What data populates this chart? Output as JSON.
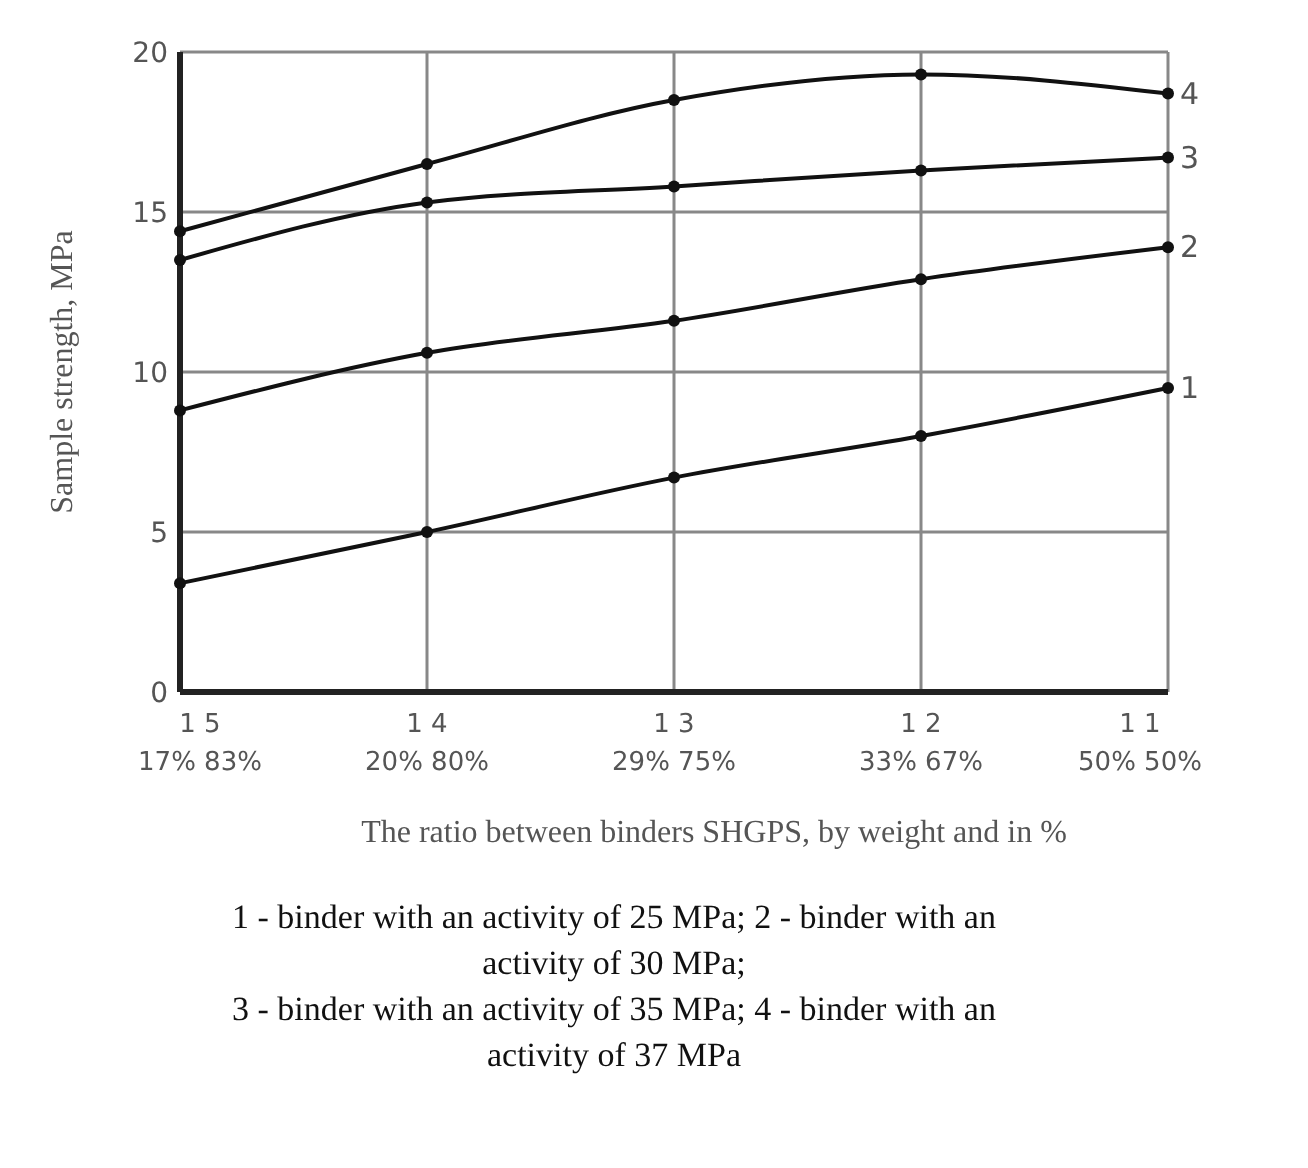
{
  "chart_data": {
    "type": "line",
    "xlabel": "The ratio between binders SHGPS, by weight and in %",
    "ylabel": "Sample strength, MPa",
    "categories": [
      "1 5\n17% 83%",
      "1 4\n20% 80%",
      "1 3\n29% 75%",
      "1 2\n33% 67%",
      "1 1\n50% 50%"
    ],
    "ylim": [
      0,
      20
    ],
    "yticks": [
      0,
      5,
      10,
      15,
      20
    ],
    "grid": true,
    "marker": "circle",
    "line_style": "solid",
    "series": [
      {
        "name": "1",
        "color": "#111111",
        "values": [
          3.4,
          5.0,
          6.7,
          8.0,
          9.5
        ]
      },
      {
        "name": "2",
        "color": "#111111",
        "values": [
          8.8,
          10.6,
          11.6,
          12.9,
          13.9
        ]
      },
      {
        "name": "3",
        "color": "#111111",
        "values": [
          13.5,
          15.3,
          15.8,
          16.3,
          16.7
        ]
      },
      {
        "name": "4",
        "color": "#111111",
        "values": [
          14.4,
          16.5,
          18.5,
          19.3,
          18.7
        ]
      }
    ],
    "annotations": [
      "1 - binder with an activity of 25 MPa; 2 - binder with an activity of 30 MPa;",
      "3 - binder with an activity of 35 MPa; 4 - binder with an activity of 37 MPa"
    ]
  }
}
